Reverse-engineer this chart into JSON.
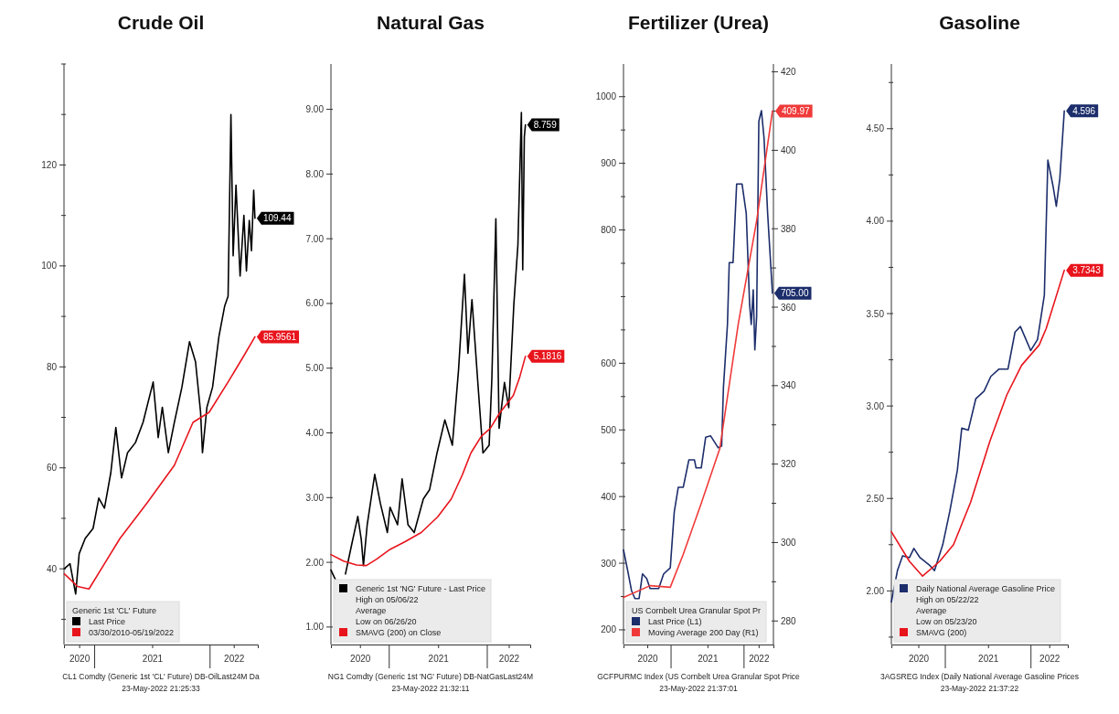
{
  "chart_data": [
    {
      "type": "line",
      "title": "Crude Oil",
      "legend_title": "Generic 1st 'CL' Future",
      "legend": "bottom left",
      "xlim": [
        "2020-09-26",
        "2022-06-01"
      ],
      "xticks": [
        {
          "value": "2020-11-13",
          "label": "2020"
        },
        {
          "value": "2021-07-02",
          "label": "2021"
        },
        {
          "value": "2022-03-17",
          "label": "2022"
        }
      ],
      "ylim": [
        25,
        140
      ],
      "yticks": [
        {
          "value": 30,
          "label": null
        },
        40,
        {
          "value": 50,
          "label": null
        },
        60,
        {
          "value": 70,
          "label": null
        },
        80,
        {
          "value": 90,
          "label": null
        },
        100,
        {
          "value": 110,
          "label": null
        },
        120,
        {
          "value": 130,
          "label": null
        },
        {
          "value": 140,
          "label": null
        }
      ],
      "series": [
        {
          "name": "Last Price",
          "color": "#000000",
          "x": [
            "2020-09-27",
            "2020-10-15",
            "2020-11-02",
            "2020-11-13",
            "2020-12-02",
            "2020-12-27",
            "2021-01-14",
            "2021-02-01",
            "2021-02-21",
            "2021-03-09",
            "2021-03-27",
            "2021-04-15",
            "2021-05-10",
            "2021-06-03",
            "2021-07-05",
            "2021-07-21",
            "2021-08-03",
            "2021-08-22",
            "2021-09-10",
            "2021-10-04",
            "2021-10-28",
            "2021-11-16",
            "2021-12-02",
            "2021-12-08",
            "2021-12-22",
            "2022-01-09",
            "2022-01-29",
            "2022-02-16",
            "2022-02-27",
            "2022-03-08",
            "2022-03-15",
            "2022-03-24",
            "2022-04-06",
            "2022-04-18",
            "2022-04-26",
            "2022-05-05",
            "2022-05-12",
            "2022-05-19",
            "2022-05-23"
          ],
          "values": [
            40,
            41,
            35,
            43,
            46,
            48,
            54,
            52,
            59,
            68,
            58,
            63,
            65,
            69,
            77,
            66,
            72,
            63,
            69,
            76,
            85,
            81,
            71,
            63,
            72,
            76,
            86,
            92,
            94,
            130,
            102,
            116,
            98,
            110,
            99,
            109,
            103,
            115,
            109.44
          ],
          "value_labels": [
            null,
            null,
            null,
            null,
            null,
            null,
            null,
            null,
            null,
            null,
            null,
            null,
            null,
            null,
            null,
            null,
            null,
            null,
            null,
            null,
            null,
            null,
            null,
            null,
            null,
            null,
            null,
            null,
            null,
            null,
            null,
            null,
            null,
            null,
            null,
            null,
            null,
            null,
            "109.44"
          ]
        },
        {
          "name": "03/30/2010-05/19/2022",
          "color": "#e8141c",
          "x": [
            "2020-09-27",
            "2020-11-08",
            "2020-12-14",
            "2021-02-01",
            "2021-03-22",
            "2021-06-15",
            "2021-09-10",
            "2021-11-08",
            "2021-12-29",
            "2022-02-27",
            "2022-04-16",
            "2022-05-23"
          ],
          "values": [
            39,
            36.5,
            36,
            41,
            46,
            53,
            60.5,
            69,
            71,
            77,
            82,
            85.9561
          ],
          "value_labels": [
            null,
            null,
            null,
            null,
            null,
            null,
            null,
            null,
            null,
            null,
            null,
            "85.9561"
          ]
        }
      ],
      "annotations": [
        "CL1 Comdty (Generic 1st 'CL' Future) DB-OilLast24M  Da",
        "23-May-2022 21:25:33"
      ]
    },
    {
      "type": "line",
      "title": "Natural Gas",
      "legend": "bottom left",
      "xlim": [
        "2020-05-29",
        "2022-06-10"
      ],
      "xticks": [
        {
          "value": "2020-09-14",
          "label": "2020"
        },
        {
          "value": "2021-07-02",
          "label": "2021"
        },
        {
          "value": "2022-03-22",
          "label": "2022"
        }
      ],
      "ylim": [
        0.73,
        9.7
      ],
      "yticks": [
        {
          "value": 1,
          "label": "1.00"
        },
        {
          "value": 2,
          "label": "2.00"
        },
        {
          "value": 3,
          "label": "3.00"
        },
        {
          "value": 4,
          "label": "4.00"
        },
        {
          "value": 5,
          "label": "5.00"
        },
        {
          "value": 6,
          "label": "6.00"
        },
        {
          "value": 7,
          "label": "7.00"
        },
        {
          "value": 8,
          "label": "8.00"
        },
        {
          "value": 9,
          "label": "9.00"
        }
      ],
      "series": [
        {
          "name": "Generic 1st 'NG' Future - Last Price",
          "color": "#000000",
          "x": [
            "2020-05-29",
            "2020-06-23",
            "2020-06-26",
            "2020-07-22",
            "2020-08-14",
            "2020-09-06",
            "2020-09-19",
            "2020-09-27",
            "2020-10-11",
            "2020-11-08",
            "2020-11-29",
            "2020-12-25",
            "2021-01-04",
            "2021-02-01",
            "2021-02-18",
            "2021-03-12",
            "2021-04-04",
            "2021-05-08",
            "2021-05-31",
            "2021-06-28",
            "2021-07-27",
            "2021-08-24",
            "2021-09-16",
            "2021-10-08",
            "2021-10-21",
            "2021-11-05",
            "2021-11-28",
            "2021-12-16",
            "2022-01-08",
            "2022-01-18",
            "2022-02-02",
            "2022-02-14",
            "2022-03-06",
            "2022-03-22",
            "2022-04-10",
            "2022-04-25",
            "2022-05-08",
            "2022-05-13",
            "2022-05-19",
            "2022-05-23"
          ],
          "values": [
            1.88,
            1.66,
            null,
            1.82,
            2.27,
            2.71,
            2.35,
            1.95,
            2.58,
            3.36,
            2.91,
            2.46,
            2.85,
            2.58,
            3.29,
            2.58,
            2.46,
            2.98,
            3.12,
            3.69,
            4.2,
            3.81,
            4.97,
            6.45,
            5.23,
            6.06,
            4.71,
            3.69,
            3.81,
            4.83,
            7.31,
            4.07,
            4.78,
            4.39,
            5.99,
            6.9,
            8.95,
            6.52,
            8.57,
            8.759
          ],
          "value_labels": [
            null,
            null,
            null,
            null,
            null,
            null,
            null,
            null,
            null,
            null,
            null,
            null,
            null,
            null,
            null,
            null,
            null,
            null,
            null,
            null,
            null,
            null,
            null,
            null,
            null,
            null,
            null,
            null,
            null,
            null,
            null,
            null,
            null,
            null,
            null,
            null,
            null,
            null,
            null,
            "8.759"
          ]
        },
        {
          "name": "SMAVG (200)  on Close",
          "color": "#e8141c",
          "x": [
            "2020-05-29",
            "2020-07-15",
            "2020-09-01",
            "2020-10-08",
            "2020-11-15",
            "2021-01-04",
            "2021-03-01",
            "2021-04-30",
            "2021-06-30",
            "2021-08-20",
            "2021-09-30",
            "2021-11-01",
            "2021-12-10",
            "2022-01-12",
            "2022-02-15",
            "2022-03-15",
            "2022-04-08",
            "2022-05-01",
            "2022-05-23"
          ],
          "values": [
            2.12,
            2.02,
            1.96,
            1.95,
            2.05,
            2.2,
            2.32,
            2.46,
            2.7,
            2.98,
            3.35,
            3.69,
            3.95,
            4.07,
            4.3,
            4.45,
            4.58,
            4.85,
            5.1816
          ],
          "value_labels": [
            null,
            null,
            null,
            null,
            null,
            null,
            null,
            null,
            null,
            null,
            null,
            null,
            null,
            null,
            null,
            null,
            null,
            null,
            "5.1816"
          ]
        }
      ],
      "annotations": [
        "High on 05/06/22",
        "Average",
        "Low on 06/26/20",
        "NG1 Comdty (Generic 1st 'NG' Future) DB-NatGasLast24M",
        "23-May-2022 21:32:11"
      ]
    },
    {
      "type": "line",
      "title": "Fertilizer (Urea)",
      "legend_title": "US Cornbelt Urea Granular Spot Pr",
      "legend": "bottom left",
      "xlim": [
        "2020-05-08",
        "2022-05-28"
      ],
      "xticks": [
        {
          "value": "2020-09-04",
          "label": "2020"
        },
        {
          "value": "2021-07-02",
          "label": "2021"
        },
        {
          "value": "2022-03-15",
          "label": "2022"
        }
      ],
      "ylim": [
        178,
        1049
      ],
      "yticks": [
        200,
        {
          "value": 250,
          "label": null
        },
        300,
        {
          "value": 350,
          "label": null
        },
        400,
        {
          "value": 450,
          "label": null
        },
        500,
        {
          "value": 550,
          "label": null
        },
        600,
        {
          "value": 650,
          "label": null
        },
        {
          "value": 700,
          "label": null
        },
        {
          "value": 750,
          "label": null
        },
        800,
        {
          "value": 850,
          "label": null
        },
        900,
        {
          "value": 950,
          "label": null
        },
        1000
      ],
      "y2lim": [
        274,
        422
      ],
      "y2ticks": [
        280,
        {
          "value": 290,
          "label": null
        },
        300,
        {
          "value": 310,
          "label": null
        },
        320,
        {
          "value": 330,
          "label": null
        },
        340,
        {
          "value": 350,
          "label": null
        },
        360,
        {
          "value": 370,
          "label": null
        },
        380,
        {
          "value": 390,
          "label": null
        },
        400,
        {
          "value": 410,
          "label": null
        },
        420
      ],
      "series": [
        {
          "name": "Last Price  (L1)",
          "color": "#1c2d6b",
          "x": [
            "2020-05-08",
            "2020-05-29",
            "2020-06-17",
            "2020-07-04",
            "2020-07-25",
            "2020-08-11",
            "2020-09-01",
            "2020-09-18",
            "2020-10-31",
            "2020-11-25",
            "2020-12-28",
            "2021-01-17",
            "2021-02-06",
            "2021-03-03",
            "2021-03-31",
            "2021-04-28",
            "2021-05-06",
            "2021-06-01",
            "2021-06-23",
            "2021-07-18",
            "2021-08-25",
            "2021-09-11",
            "2021-09-20",
            "2021-10-10",
            "2021-10-19",
            "2021-11-07",
            "2021-11-25",
            "2021-12-22",
            "2022-01-12",
            "2022-01-29",
            "2022-02-06",
            "2022-02-16",
            "2022-02-24",
            "2022-03-05",
            "2022-03-16",
            "2022-03-29",
            "2022-04-11",
            "2022-04-29",
            "2022-05-23"
          ],
          "values": [
            320,
            289,
            259,
            247,
            247,
            284,
            277,
            262,
            262,
            284,
            293,
            377,
            414,
            414,
            455,
            455,
            443,
            443,
            489,
            491,
            473,
            476,
            564,
            658,
            751,
            751,
            869,
            869,
            825,
            688,
            658,
            710,
            620,
            670,
            963,
            979,
            938,
            825,
            705
          ],
          "value_labels": [
            null,
            null,
            null,
            null,
            null,
            null,
            null,
            null,
            null,
            null,
            null,
            null,
            null,
            null,
            null,
            null,
            null,
            null,
            null,
            null,
            null,
            null,
            null,
            null,
            null,
            null,
            null,
            null,
            null,
            null,
            null,
            null,
            null,
            null,
            null,
            null,
            null,
            null,
            "705.00"
          ]
        },
        {
          "name": "Moving Average 200 Day  (R1)",
          "color": "#f03a3a",
          "axis": "y2",
          "x": [
            "2020-05-08",
            "2020-09-18",
            "2020-12-28",
            "2021-03-03",
            "2021-06-01",
            "2021-09-02",
            "2021-12-04",
            "2022-03-05",
            "2022-05-23"
          ],
          "values": [
            286,
            289,
            288.6,
            297,
            310,
            324,
            356,
            382,
            409.97
          ],
          "value_labels": [
            null,
            null,
            null,
            null,
            null,
            null,
            null,
            null,
            "409.97"
          ]
        }
      ],
      "annotations": [
        "GCFPURMC Index (US Cornbelt Urea Granular Spot Price",
        "23-May-2022 21:37:01"
      ]
    },
    {
      "type": "line",
      "title": "Gasoline",
      "legend": "bottom left",
      "xlim": [
        "2020-05-16",
        "2022-06-07"
      ],
      "xticks": [
        {
          "value": "2020-09-08",
          "label": "2020"
        },
        {
          "value": "2021-07-02",
          "label": "2021"
        },
        {
          "value": "2022-03-20",
          "label": "2022"
        }
      ],
      "ylim": [
        1.71,
        4.85
      ],
      "yticks": [
        {
          "value": 1.75,
          "label": null
        },
        {
          "value": 2,
          "label": "2.00"
        },
        {
          "value": 2.25,
          "label": null
        },
        {
          "value": 2.5,
          "label": "2.50"
        },
        {
          "value": 2.75,
          "label": null
        },
        {
          "value": 3,
          "label": "3.00"
        },
        {
          "value": 3.25,
          "label": null
        },
        {
          "value": 3.5,
          "label": "3.50"
        },
        {
          "value": 3.75,
          "label": null
        },
        {
          "value": 4,
          "label": "4.00"
        },
        {
          "value": 4.25,
          "label": null
        },
        {
          "value": 4.5,
          "label": "4.50"
        },
        {
          "value": 4.75,
          "label": null
        }
      ],
      "series": [
        {
          "name": "Daily National Average Gasoline Price",
          "color": "#1c2d6b",
          "x": [
            "2020-05-16",
            "2020-06-11",
            "2020-07-03",
            "2020-08-01",
            "2020-08-20",
            "2020-09-15",
            "2020-10-25",
            "2020-11-16",
            "2020-12-21",
            "2021-01-20",
            "2021-02-21",
            "2021-03-12",
            "2021-04-09",
            "2021-05-11",
            "2021-06-15",
            "2021-07-14",
            "2021-08-18",
            "2021-09-25",
            "2021-10-25",
            "2021-11-17",
            "2021-12-31",
            "2022-01-29",
            "2022-02-27",
            "2022-03-14",
            "2022-04-05",
            "2022-04-19",
            "2022-05-04",
            "2022-05-23"
          ],
          "values": [
            1.94,
            2.11,
            2.19,
            2.18,
            2.23,
            2.18,
            2.14,
            2.11,
            2.25,
            2.43,
            2.65,
            2.88,
            2.87,
            3.04,
            3.08,
            3.16,
            3.2,
            3.2,
            3.4,
            3.43,
            3.3,
            3.36,
            3.6,
            4.33,
            4.19,
            4.08,
            4.23,
            4.596
          ],
          "value_labels": [
            null,
            null,
            null,
            null,
            null,
            null,
            null,
            null,
            null,
            null,
            null,
            null,
            null,
            null,
            null,
            null,
            null,
            null,
            null,
            null,
            null,
            null,
            null,
            null,
            null,
            null,
            null,
            "4.596"
          ]
        },
        {
          "name": "SMAVG (200)",
          "color": "#e8141c",
          "x": [
            "2020-05-16",
            "2020-08-01",
            "2020-09-26",
            "2020-12-08",
            "2021-02-05",
            "2021-04-19",
            "2021-07-10",
            "2021-09-20",
            "2021-11-22",
            "2022-02-05",
            "2022-03-07",
            "2022-05-23"
          ],
          "values": [
            2.32,
            2.16,
            2.08,
            2.16,
            2.25,
            2.48,
            2.81,
            3.06,
            3.22,
            3.33,
            3.42,
            3.7343
          ],
          "value_labels": [
            null,
            null,
            null,
            null,
            null,
            null,
            null,
            null,
            null,
            null,
            null,
            "3.7343"
          ]
        }
      ],
      "annotations": [
        "High on 05/22/22",
        "Average",
        "Low on 05/23/20",
        "3AGSREG Index (Daily National Average Gasoline Prices",
        "23-May-2022 21:37:22"
      ]
    }
  ]
}
